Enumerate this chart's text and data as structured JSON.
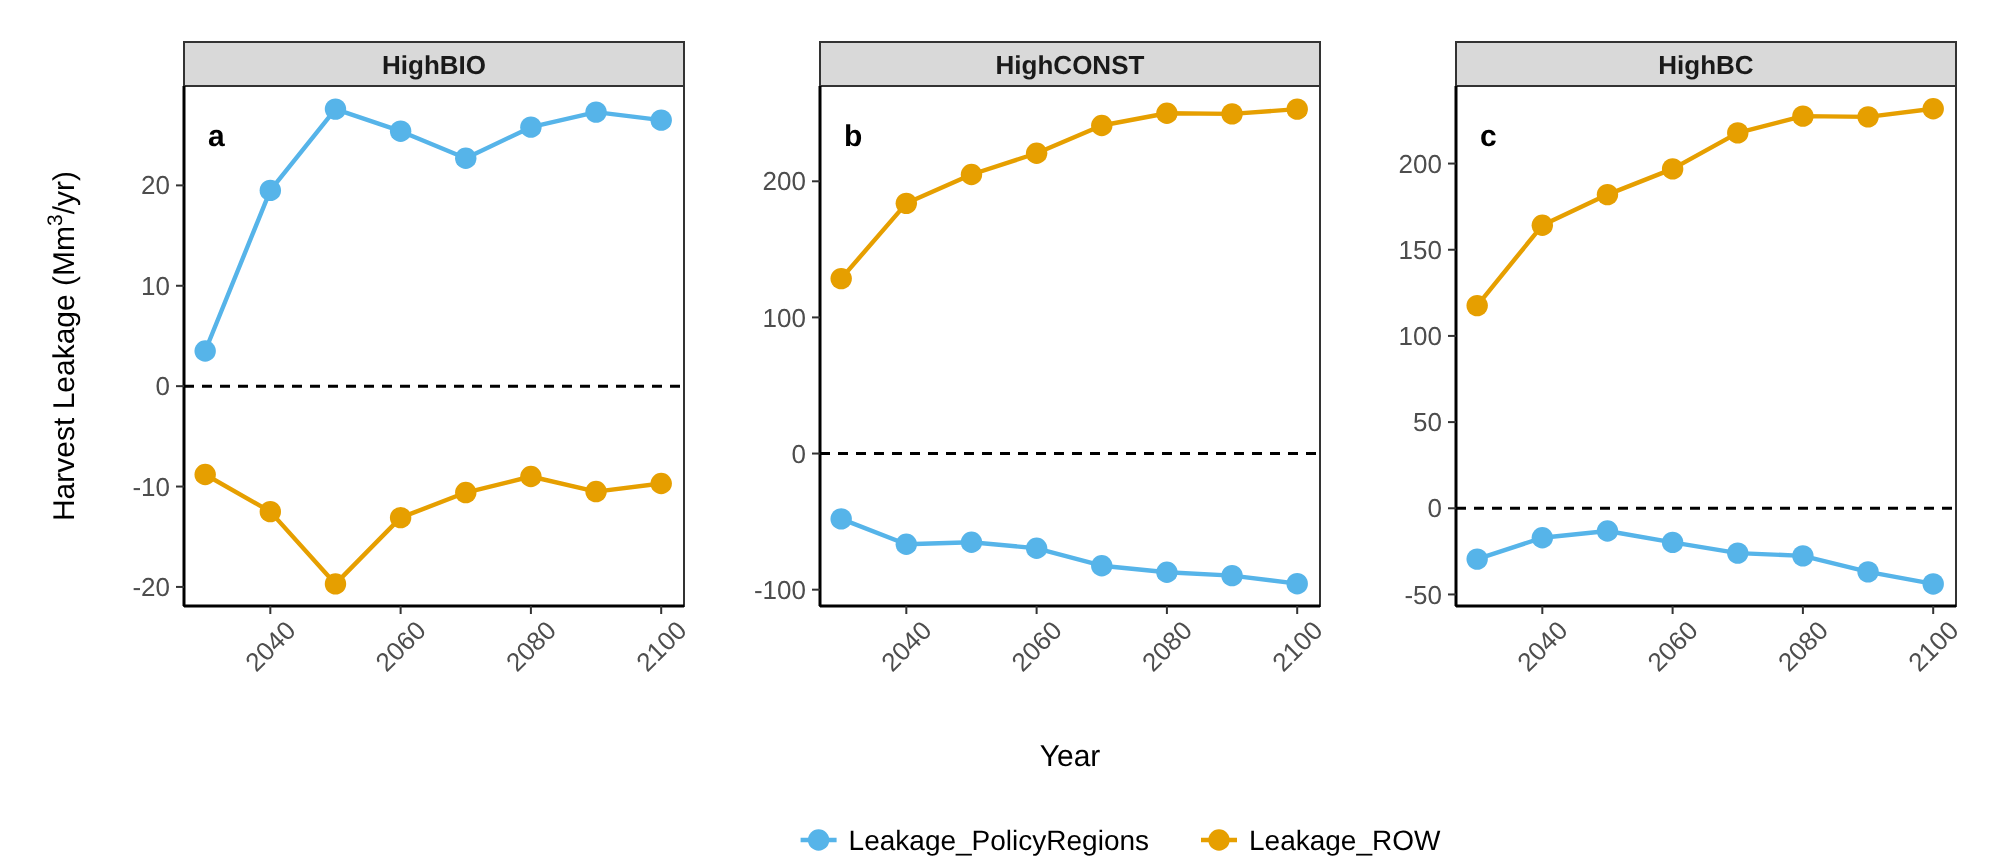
{
  "chart_data": [
    {
      "type": "line",
      "title": "HighBIO",
      "ylabel": "Harvest Leakage (Mm$^{3}$/yr)",
      "annotations": [
        "a"
      ],
      "x": [
        2030,
        2040,
        2050,
        2060,
        2070,
        2080,
        2090,
        2100
      ],
      "xlim": [
        2026.75,
        2103.5
      ],
      "xticks": [
        2040,
        2060,
        2080,
        2100
      ],
      "ylim": [
        -21.9,
        29.9
      ],
      "yticks": [
        -20,
        -10,
        0,
        10,
        20
      ],
      "marker": "circle",
      "line_style": "solid",
      "grid": false,
      "legend": "bottom",
      "ref_lines": [
        {
          "axis": "y",
          "value": 0,
          "line_style": "dashed",
          "color": "#000000"
        }
      ],
      "series": [
        {
          "name": "Leakage_PolicyRegions",
          "color": "#56b4e9",
          "values": [
            3.5,
            19.5,
            27.6,
            25.4,
            22.7,
            25.8,
            27.3,
            26.5
          ]
        },
        {
          "name": "Leakage_ROW",
          "color": "#e69f00",
          "values": [
            -8.8,
            -12.5,
            -19.7,
            -13.1,
            -10.6,
            -9.0,
            -10.5,
            -9.7
          ]
        }
      ]
    },
    {
      "type": "line",
      "title": "HighCONST",
      "xlabel": "Year",
      "annotations": [
        "b"
      ],
      "x": [
        2030,
        2040,
        2050,
        2060,
        2070,
        2080,
        2090,
        2100
      ],
      "xlim": [
        2026.75,
        2103.5
      ],
      "xticks": [
        2040,
        2060,
        2080,
        2100
      ],
      "ylim": [
        -112,
        270
      ],
      "yticks": [
        -100,
        0,
        100,
        200
      ],
      "marker": "circle",
      "line_style": "solid",
      "grid": false,
      "ref_lines": [
        {
          "axis": "y",
          "value": 0,
          "line_style": "dashed",
          "color": "#000000"
        }
      ],
      "series": [
        {
          "name": "Leakage_PolicyRegions",
          "color": "#56b4e9",
          "values": [
            -48,
            -66.6,
            -65.2,
            -69.6,
            -82.4,
            -87.2,
            -89.7,
            -95.6
          ]
        },
        {
          "name": "Leakage_ROW",
          "color": "#e69f00",
          "values": [
            128.5,
            183.8,
            205,
            220.6,
            241,
            250,
            249.5,
            253
          ]
        }
      ]
    },
    {
      "type": "line",
      "title": "HighBC",
      "annotations": [
        "c"
      ],
      "x": [
        2030,
        2040,
        2050,
        2060,
        2070,
        2080,
        2090,
        2100
      ],
      "xlim": [
        2026.75,
        2103.5
      ],
      "xticks": [
        2040,
        2060,
        2080,
        2100
      ],
      "ylim": [
        -56.7,
        245
      ],
      "yticks": [
        -50,
        0,
        50,
        100,
        150,
        200
      ],
      "marker": "circle",
      "line_style": "solid",
      "grid": false,
      "ref_lines": [
        {
          "axis": "y",
          "value": 0,
          "line_style": "dashed",
          "color": "#000000"
        }
      ],
      "series": [
        {
          "name": "Leakage_PolicyRegions",
          "color": "#56b4e9",
          "values": [
            -29.5,
            -17.1,
            -13.2,
            -19.8,
            -26,
            -27.6,
            -36.9,
            -43.9
          ]
        },
        {
          "name": "Leakage_ROW",
          "color": "#e69f00",
          "values": [
            117.6,
            164.2,
            182,
            196.9,
            217.8,
            227.5,
            227.1,
            231.8
          ]
        }
      ]
    }
  ]
}
